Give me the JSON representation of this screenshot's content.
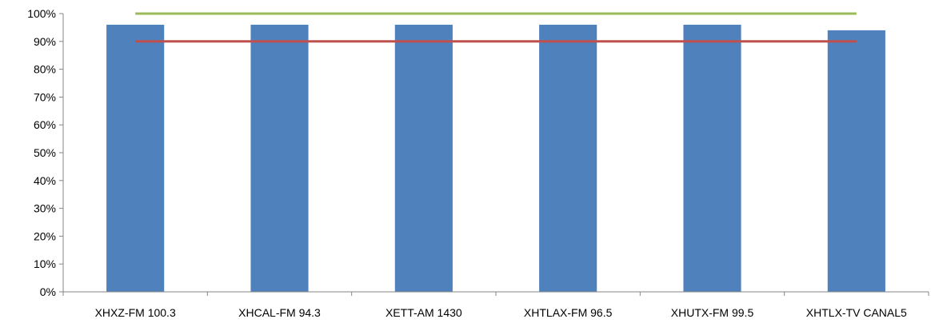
{
  "chart_data": {
    "type": "bar",
    "title": "",
    "xlabel": "",
    "ylabel": "",
    "categories": [
      "XHXZ-FM 100.3",
      "XHCAL-FM 94.3",
      "XETT-AM 1430",
      "XHTLAX-FM 96.5",
      "XHUTX-FM 99.5",
      "XHTLX-TV CANAL5"
    ],
    "series": [
      {
        "values": [
          0.96,
          0.96,
          0.96,
          0.96,
          0.96,
          0.94
        ],
        "color": "#4F81BD"
      }
    ],
    "reference_lines": [
      {
        "value": 1.0,
        "color": "#9BBB59"
      },
      {
        "value": 0.9,
        "color": "#C0504D"
      }
    ],
    "ylim": [
      0,
      1.0
    ],
    "y_ticks": [
      "0%",
      "10%",
      "20%",
      "30%",
      "40%",
      "50%",
      "60%",
      "70%",
      "80%",
      "90%",
      "100%"
    ],
    "grid": false,
    "legend": "none"
  }
}
